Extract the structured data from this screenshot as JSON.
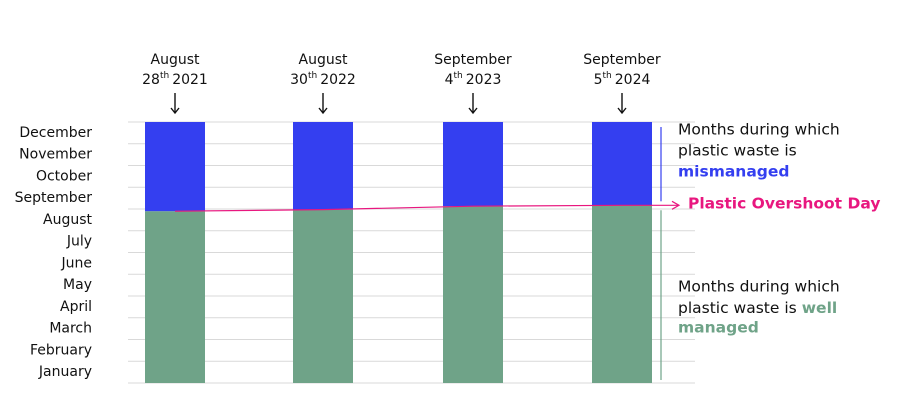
{
  "chart_data": {
    "type": "stacked_bar",
    "categories": [
      {
        "month": "August",
        "day": "28",
        "suffix": "th",
        "year": "2021"
      },
      {
        "month": "August",
        "day": "30",
        "suffix": "th",
        "year": "2022"
      },
      {
        "month": "September",
        "day": "4",
        "suffix": "th",
        "year": "2023"
      },
      {
        "month": "September",
        "day": "5",
        "suffix": "th",
        "year": "2024"
      }
    ],
    "y_categories": [
      "January",
      "February",
      "March",
      "April",
      "May",
      "June",
      "July",
      "August",
      "September",
      "October",
      "November",
      "December"
    ],
    "ylim": [
      0,
      12
    ],
    "yticks": [
      0,
      1,
      2,
      3,
      4,
      5,
      6,
      7,
      8,
      9,
      10,
      11,
      12
    ],
    "grid": true,
    "series": [
      {
        "color": "#6fa388",
        "values": [
          7.9,
          7.97,
          8.13,
          8.17
        ]
      },
      {
        "color": "#343ff0",
        "values": [
          4.1,
          4.03,
          3.87,
          3.83
        ]
      }
    ],
    "overshoot_color": "#e8177f",
    "annotations": {
      "top": [
        "Months during which",
        "plastic waste is"
      ],
      "top_bold": "mismanaged",
      "overshoot": "Plastic Overshoot Day",
      "bottom": [
        "Months during which",
        "plastic waste is"
      ],
      "bottom_bold": [
        "well",
        "managed"
      ]
    }
  }
}
